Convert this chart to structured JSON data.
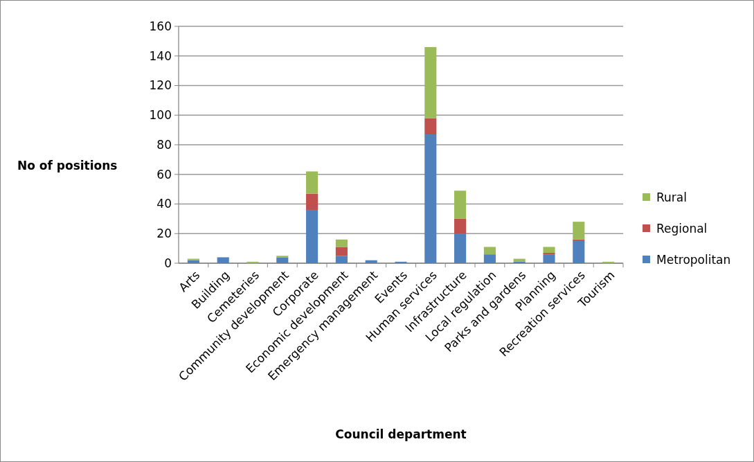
{
  "chart_data": {
    "type": "bar",
    "stacked": true,
    "xlabel": "Council department",
    "ylabel": "No of positions",
    "categories": [
      "Arts",
      "Building",
      "Cemeteries",
      "Community development",
      "Corporate",
      "Economic development",
      "Emergency management",
      "Events",
      "Human services",
      "Infrastructure",
      "Local regulation",
      "Parks and gardens",
      "Planning",
      "Recreation services",
      "Tourism"
    ],
    "series": [
      {
        "name": "Metropolitan",
        "color": "#4f81bd",
        "values": [
          2,
          4,
          0,
          4,
          36,
          5,
          2,
          1,
          87,
          20,
          6,
          1,
          6,
          15,
          0
        ]
      },
      {
        "name": "Regional",
        "color": "#c0504d",
        "values": [
          0,
          0,
          0,
          0,
          11,
          6,
          0,
          0,
          11,
          10,
          0,
          0,
          1,
          1,
          0
        ]
      },
      {
        "name": "Rural",
        "color": "#9bbb59",
        "values": [
          1,
          0,
          1,
          1,
          15,
          5,
          0,
          0,
          48,
          19,
          5,
          2,
          4,
          12,
          1
        ]
      }
    ],
    "ylim": [
      0,
      160
    ],
    "yticks": [
      0,
      20,
      40,
      60,
      80,
      100,
      120,
      140,
      160
    ],
    "grid": "y",
    "legend": "right"
  }
}
